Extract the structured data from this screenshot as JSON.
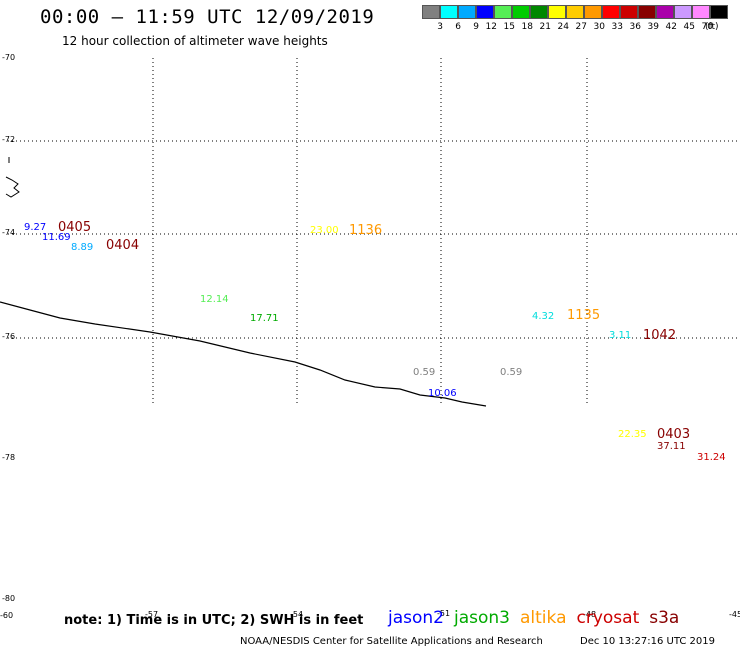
{
  "header": {
    "title": "00:00 – 11:59 UTC 12/09/2019",
    "subtitle": "12 hour collection of altimeter wave heights"
  },
  "color_scale": {
    "unit": "(ft)",
    "bins": [
      {
        "label": "3",
        "color": "#808080"
      },
      {
        "label": "6",
        "color": "#00ffff"
      },
      {
        "label": "9",
        "color": "#00aaff"
      },
      {
        "label": "12",
        "color": "#0000ff"
      },
      {
        "label": "15",
        "color": "#55ee55"
      },
      {
        "label": "18",
        "color": "#00cc00"
      },
      {
        "label": "21",
        "color": "#008800"
      },
      {
        "label": "24",
        "color": "#ffff00"
      },
      {
        "label": "27",
        "color": "#ffcc00"
      },
      {
        "label": "30",
        "color": "#ff9900"
      },
      {
        "label": "33",
        "color": "#ff0000"
      },
      {
        "label": "36",
        "color": "#cc0000"
      },
      {
        "label": "39",
        "color": "#880000"
      },
      {
        "label": "42",
        "color": "#aa00aa"
      },
      {
        "label": "45",
        "color": "#cc99ff"
      },
      {
        "label": "70",
        "color": "#ff88ff"
      },
      {
        "label": "",
        "color": "#000000"
      }
    ]
  },
  "map": {
    "lat_labels": [
      {
        "value": -70,
        "text": "-70"
      },
      {
        "value": -72,
        "text": "-72"
      },
      {
        "value": -74,
        "text": "-74"
      },
      {
        "value": -76,
        "text": "-76"
      },
      {
        "value": -78,
        "text": "-78"
      },
      {
        "value": -80,
        "text": "-80"
      }
    ],
    "lon_labels": [
      {
        "text": "-60"
      },
      {
        "text": "-57"
      },
      {
        "text": "-54"
      },
      {
        "text": "-51"
      },
      {
        "text": "-48"
      },
      {
        "text": "-45"
      }
    ],
    "wave_heights": [
      {
        "text": "9.27",
        "color": "#0000ff"
      },
      {
        "text": "11.69",
        "color": "#0000ff"
      },
      {
        "text": "8.89",
        "color": "#00aaff"
      },
      {
        "text": "12.14",
        "color": "#55ee55"
      },
      {
        "text": "17.71",
        "color": "#00aa00"
      },
      {
        "text": "23.00",
        "color": "#ffff00"
      },
      {
        "text": "4.32",
        "color": "#00dddd"
      },
      {
        "text": "3.11",
        "color": "#00dddd"
      },
      {
        "text": "0.59",
        "color": "#808080"
      },
      {
        "text": "0.59",
        "color": "#808080"
      },
      {
        "text": "10.06",
        "color": "#0000ff"
      },
      {
        "text": "22.35",
        "color": "#ffff00"
      },
      {
        "text": "37.11",
        "color": "#880000"
      },
      {
        "text": "31.24",
        "color": "#cc0000"
      }
    ],
    "pass_times": [
      {
        "text": "0405",
        "color": "#880000"
      },
      {
        "text": "0404",
        "color": "#880000"
      },
      {
        "text": "1136",
        "color": "#ff9900"
      },
      {
        "text": "1135",
        "color": "#ff9900"
      },
      {
        "text": "1042",
        "color": "#880000"
      },
      {
        "text": "0403",
        "color": "#880000"
      }
    ]
  },
  "footer": {
    "note": "note: 1) Time is in UTC; 2) SWH is in feet",
    "satellites": [
      {
        "name": "jason2",
        "color": "#0000ff"
      },
      {
        "name": "jason3",
        "color": "#00aa00"
      },
      {
        "name": "altika",
        "color": "#ff9900"
      },
      {
        "name": "cryosat",
        "color": "#cc0000"
      },
      {
        "name": "s3a",
        "color": "#880000"
      }
    ],
    "credit": "NOAA/NESDIS Center for Satellite Applications and Research",
    "generated": "Dec 10 13:27:16 UTC 2019"
  }
}
